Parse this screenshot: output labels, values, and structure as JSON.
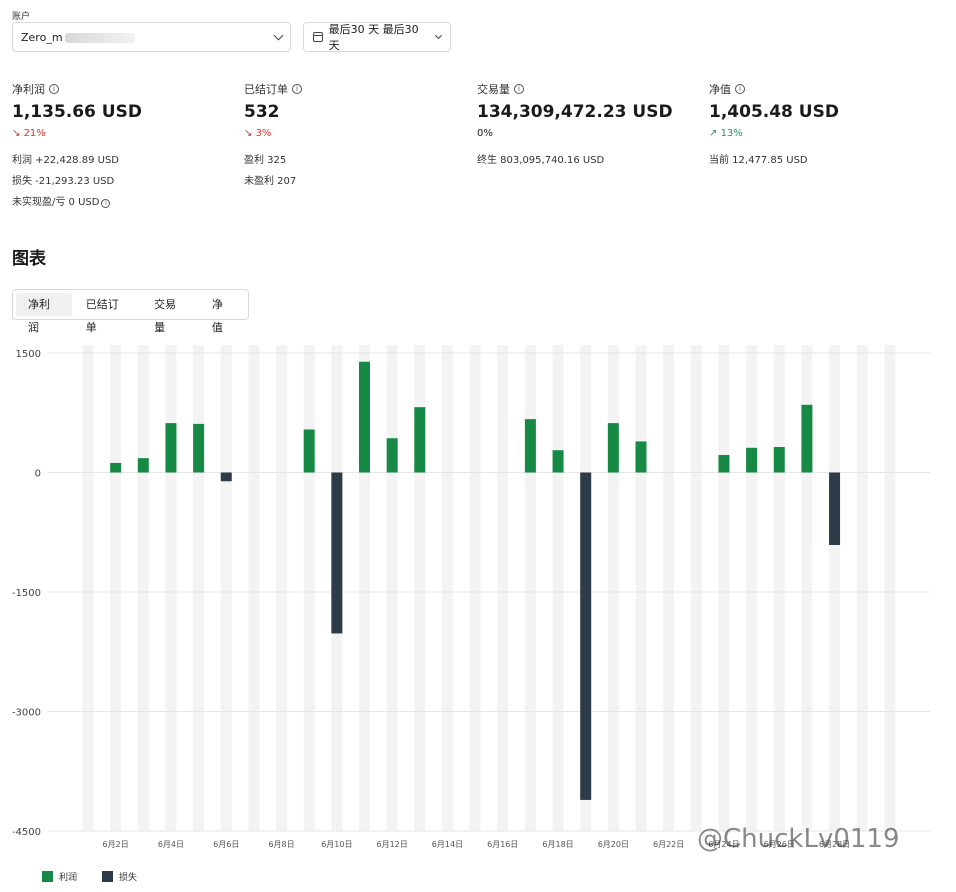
{
  "account": {
    "label": "账户",
    "value": "Zero_m"
  },
  "date_range": {
    "value": "最后30 天 最后30 天"
  },
  "stats": [
    {
      "title": "净利润",
      "value": "1,135.66 USD",
      "change": "21%",
      "change_dir": "down",
      "lines": [
        "利润 +22,428.89 USD",
        "损失 -21,293.23 USD",
        "未实现盈/亏 0 USD"
      ]
    },
    {
      "title": "已结订单",
      "value": "532",
      "change": "3%",
      "change_dir": "down",
      "lines": [
        "盈利 325",
        "未盈利 207"
      ]
    },
    {
      "title": "交易量",
      "value": "134,309,472.23 USD",
      "change": "0%",
      "change_dir": "neutral",
      "lines": [
        "终生 803,095,740.16 USD"
      ]
    },
    {
      "title": "净值",
      "value": "1,405.48 USD",
      "change": "13%",
      "change_dir": "up",
      "lines": [
        "当前 12,477.85 USD"
      ]
    }
  ],
  "section_title": "图表",
  "tabs": [
    "净利润",
    "已结订单",
    "交易量",
    "净值"
  ],
  "active_tab": "净利润",
  "watermark": "@ChuckLv0119",
  "colors": {
    "profit": "#168a45",
    "loss": "#2d3a47",
    "day_band": "#f3f3f3"
  },
  "chart_data": {
    "type": "bar",
    "ylim": [
      -4500,
      1500
    ],
    "yticks": [
      1500,
      0,
      -1500,
      -3000,
      -4500
    ],
    "x_tick_labels": [
      "6月2日",
      "6月4日",
      "6月6日",
      "6月8日",
      "6月10日",
      "6月12日",
      "6月14日",
      "6月16日",
      "6月18日",
      "6月20日",
      "6月22日",
      "6月24日",
      "6月26日",
      "6月28日"
    ],
    "categories": [
      "6月1日",
      "6月2日",
      "6月3日",
      "6月4日",
      "6月5日",
      "6月6日",
      "6月7日",
      "6月8日",
      "6月9日",
      "6月10日",
      "6月11日",
      "6月12日",
      "6月13日",
      "6月14日",
      "6月15日",
      "6月16日",
      "6月17日",
      "6月18日",
      "6月19日",
      "6月20日",
      "6月21日",
      "6月22日",
      "6月23日",
      "6月24日",
      "6月25日",
      "6月26日",
      "6月27日",
      "6月28日",
      "6月29日",
      "6月30日"
    ],
    "series": [
      {
        "name": "利润",
        "values": [
          0,
          120,
          180,
          620,
          610,
          0,
          0,
          0,
          540,
          0,
          1390,
          430,
          820,
          0,
          0,
          0,
          670,
          280,
          0,
          620,
          390,
          0,
          0,
          220,
          310,
          320,
          850,
          0,
          0,
          0
        ]
      },
      {
        "name": "损失",
        "values": [
          0,
          0,
          0,
          0,
          0,
          -110,
          0,
          0,
          0,
          -2020,
          0,
          0,
          0,
          0,
          0,
          0,
          0,
          0,
          -4110,
          0,
          0,
          0,
          0,
          0,
          0,
          0,
          0,
          -910,
          0,
          0
        ]
      }
    ]
  }
}
